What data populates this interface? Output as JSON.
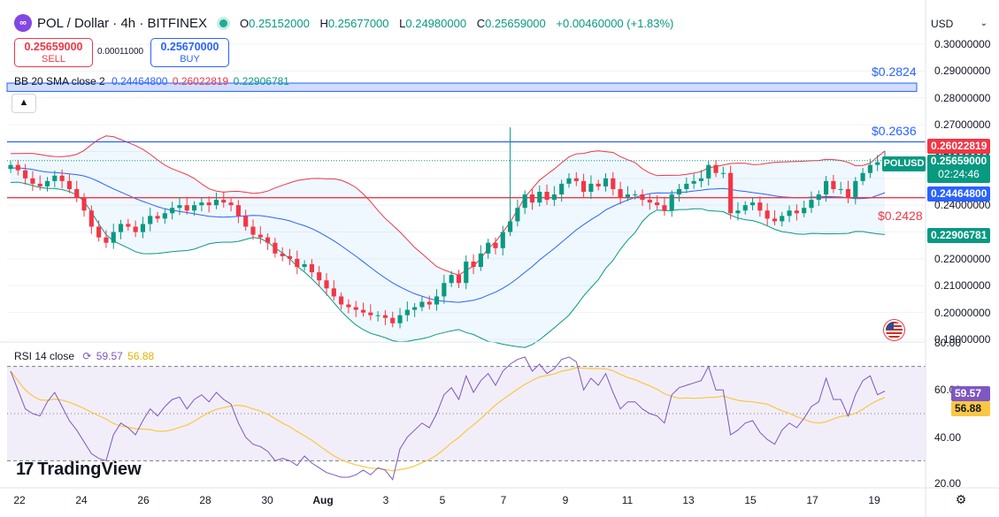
{
  "header": {
    "logo_glyph": "∞",
    "symbol": "POL / Dollar · 4h · BITFINEX",
    "open_label": "O",
    "open": "0.25152000",
    "high_label": "H",
    "high": "0.25677000",
    "low_label": "L",
    "low": "0.24980000",
    "close_label": "C",
    "close": "0.25659000",
    "change": "+0.00460000 (+1.83%)"
  },
  "trade": {
    "sell_price": "0.25659000",
    "sell_label": "SELL",
    "spread": "0.00011000",
    "buy_price": "0.25670000",
    "buy_label": "BUY"
  },
  "indicators": {
    "bb_label": "BB 20 SMA close 2",
    "bb_basis": "0.24464800",
    "bb_upper": "0.26022819",
    "bb_lower": "0.22906781",
    "rsi_label": "RSI 14 close",
    "rsi_value": "59.57",
    "rsi_ma": "56.88"
  },
  "currency_selector": "USD",
  "price_labels": {
    "upper": "0.26022819",
    "close": "0.25659000",
    "symbol_tag": "POLUSD",
    "countdown": "02:24:46",
    "basis": "0.24464800",
    "lower": "0.22906781",
    "rsi": "59.57",
    "rsi_ma": "56.88"
  },
  "levels": {
    "zone": "$0.2824",
    "resistance": "$0.2636",
    "support": "$0.2428"
  },
  "brand": "TradingView",
  "brand_mark": "17",
  "colors": {
    "up": "#089981",
    "down": "#f23645",
    "basis": "#2962ff",
    "upper": "#f23645",
    "lower": "#089981",
    "rsi": "#7e57c2",
    "rsi_ma": "#f9c742"
  },
  "chart_data": [
    {
      "type": "candlestick",
      "symbol": "POLUSD",
      "timeframe": "4h",
      "ylim": [
        0.19,
        0.3
      ],
      "y_ticks": [
        "0.19000000",
        "0.20000000",
        "0.21000000",
        "0.22000000",
        "0.23000000",
        "0.24000000",
        "0.25000000",
        "0.26000000",
        "0.27000000",
        "0.28000000",
        "0.29000000",
        "0.30000000"
      ],
      "x_ticks": [
        "22",
        "24",
        "26",
        "28",
        "30",
        "Aug",
        "3",
        "5",
        "7",
        "9",
        "11",
        "13",
        "15",
        "17",
        "19"
      ],
      "close_series": [
        0.255,
        0.253,
        0.25,
        0.248,
        0.247,
        0.249,
        0.251,
        0.249,
        0.246,
        0.243,
        0.238,
        0.232,
        0.228,
        0.226,
        0.23,
        0.233,
        0.232,
        0.23,
        0.233,
        0.236,
        0.235,
        0.237,
        0.239,
        0.24,
        0.238,
        0.24,
        0.241,
        0.24,
        0.242,
        0.241,
        0.24,
        0.236,
        0.232,
        0.229,
        0.228,
        0.226,
        0.222,
        0.221,
        0.22,
        0.217,
        0.218,
        0.215,
        0.212,
        0.209,
        0.206,
        0.203,
        0.202,
        0.201,
        0.2,
        0.199,
        0.199,
        0.198,
        0.196,
        0.199,
        0.201,
        0.202,
        0.204,
        0.203,
        0.206,
        0.211,
        0.214,
        0.211,
        0.219,
        0.217,
        0.222,
        0.226,
        0.224,
        0.23,
        0.234,
        0.239,
        0.244,
        0.241,
        0.245,
        0.242,
        0.244,
        0.248,
        0.25,
        0.249,
        0.245,
        0.248,
        0.247,
        0.25,
        0.246,
        0.243,
        0.244,
        0.244,
        0.242,
        0.241,
        0.24,
        0.238,
        0.244,
        0.246,
        0.248,
        0.249,
        0.25,
        0.255,
        0.252,
        0.252,
        0.237,
        0.238,
        0.24,
        0.241,
        0.238,
        0.235,
        0.234,
        0.236,
        0.238,
        0.237,
        0.239,
        0.242,
        0.244,
        0.249,
        0.246,
        0.246,
        0.243,
        0.249,
        0.252,
        0.255,
        0.256,
        0.257
      ],
      "bb_upper_at_last": 0.26022819,
      "bb_basis_at_last": 0.244648,
      "bb_lower_at_last": 0.22906781,
      "horizontal_levels": [
        0.2636,
        0.2428
      ],
      "zone": [
        0.2824,
        0.2855
      ],
      "last": 0.25659
    },
    {
      "type": "line",
      "name": "RSI 14 close",
      "ylim": [
        20,
        80
      ],
      "y_ticks": [
        "20.00",
        "40.00",
        "60.00",
        "80.00"
      ],
      "band": [
        30,
        70
      ],
      "rsi_series": [
        68,
        60,
        52,
        50,
        49,
        55,
        59,
        53,
        47,
        43,
        38,
        33,
        31,
        30,
        41,
        46,
        44,
        41,
        47,
        52,
        49,
        53,
        56,
        57,
        52,
        56,
        58,
        55,
        59,
        56,
        54,
        46,
        40,
        37,
        36,
        34,
        30,
        31,
        30,
        28,
        32,
        29,
        27,
        25,
        24,
        23,
        23,
        24,
        26,
        24,
        27,
        26,
        22,
        35,
        40,
        43,
        46,
        44,
        50,
        58,
        61,
        56,
        66,
        59,
        64,
        67,
        62,
        68,
        71,
        73,
        74,
        68,
        71,
        67,
        69,
        73,
        74,
        72,
        60,
        65,
        62,
        67,
        59,
        52,
        55,
        55,
        52,
        50,
        49,
        46,
        58,
        61,
        62,
        63,
        64,
        70,
        60,
        60,
        41,
        43,
        46,
        47,
        42,
        39,
        37,
        43,
        46,
        44,
        48,
        53,
        55,
        65,
        56,
        56,
        49,
        58,
        64,
        66,
        58,
        59.57
      ],
      "last_rsi": 59.57,
      "last_ma": 56.88
    }
  ]
}
